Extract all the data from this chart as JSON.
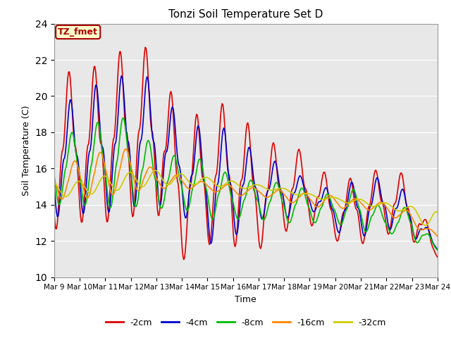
{
  "title": "Tonzi Soil Temperature Set D",
  "xlabel": "Time",
  "ylabel": "Soil Temperature (C)",
  "ylim": [
    10,
    24
  ],
  "yticks": [
    10,
    12,
    14,
    16,
    18,
    20,
    22,
    24
  ],
  "x_labels": [
    "Mar 9",
    "Mar 10",
    "Mar 11",
    "Mar 12",
    "Mar 13",
    "Mar 14",
    "Mar 15",
    "Mar 16",
    "Mar 17",
    "Mar 18",
    "Mar 19",
    "Mar 20",
    "Mar 21",
    "Mar 22",
    "Mar 23",
    "Mar 24"
  ],
  "annotation_text": "TZ_fmet",
  "annotation_bg": "#ffffcc",
  "annotation_border": "#aa0000",
  "bg_color": "#e8e8e8",
  "line_colors": [
    "#dd0000",
    "#0000cc",
    "#00bb00",
    "#ff8800",
    "#cccc00"
  ],
  "line_labels": [
    "-2cm",
    "-4cm",
    "-8cm",
    "-16cm",
    "-32cm"
  ],
  "line_width": 1.2,
  "n_points": 480
}
